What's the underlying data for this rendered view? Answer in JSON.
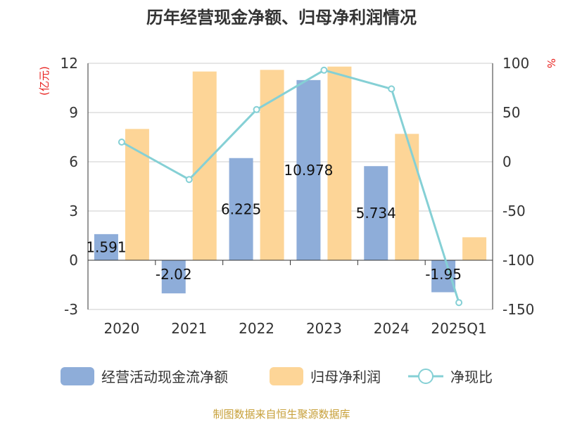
{
  "chart_data": {
    "type": "bar",
    "title": "历年经营现金净额、归母净利润情况",
    "categories": [
      "2020",
      "2021",
      "2022",
      "2023",
      "2024",
      "2025Q1"
    ],
    "left_axis": {
      "unit": "(亿元)",
      "ylim": [
        -3,
        12
      ],
      "ticks": [
        -3,
        0,
        3,
        6,
        9,
        12
      ]
    },
    "right_axis": {
      "unit": "%",
      "ylim": [
        -150,
        100
      ],
      "ticks": [
        -150,
        -100,
        -50,
        0,
        50,
        100
      ]
    },
    "grid": true,
    "legend_position": "bottom",
    "series": [
      {
        "name": "经营活动现金流净额",
        "type": "bar",
        "axis": "left",
        "color": "#8eadd9",
        "values": [
          1.591,
          -2.02,
          6.225,
          10.978,
          5.734,
          -1.95
        ],
        "labels": [
          "1.591",
          "-2.02",
          "6.225",
          "10.978",
          "5.734",
          "-1.95"
        ]
      },
      {
        "name": "归母净利润",
        "type": "bar",
        "axis": "left",
        "color": "#fdd597",
        "values": [
          8.0,
          11.5,
          11.6,
          11.8,
          7.7,
          1.4
        ]
      },
      {
        "name": "净现比",
        "type": "line",
        "axis": "right",
        "color": "#85d0d5",
        "values": [
          20,
          -18,
          53,
          93,
          74,
          -143
        ]
      }
    ],
    "source": "制图数据来自恒生聚源数据库"
  }
}
